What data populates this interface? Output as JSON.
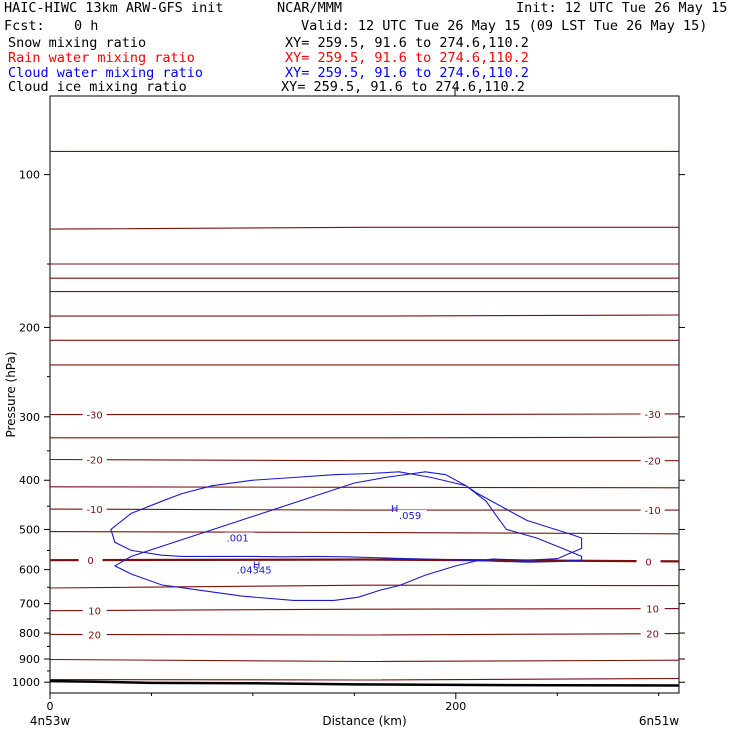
{
  "header": {
    "model": "HAIC-HIWC 13km ARW-GFS init",
    "org": "NCAR/MMM",
    "init": "Init: 12 UTC Tue 26 May 15",
    "fcst_label": "Fcst:",
    "fcst_value": "0 h",
    "valid": "Valid: 12 UTC Tue 26 May 15 (09 LST Tue 26 May 15)"
  },
  "fields": [
    {
      "name": "Snow mixing ratio",
      "xy": "XY= 259.5, 91.6 to 274.6,110.2",
      "color": "#000000"
    },
    {
      "name": "Rain water mixing ratio",
      "xy": "XY= 259.5, 91.6 to 274.6,110.2",
      "color": "#ff0000"
    },
    {
      "name": "Cloud water mixing ratio",
      "xy": "XY= 259.5, 91.6 to 274.6,110.2",
      "color": "#0000ff"
    },
    {
      "name": "Cloud ice mixing ratio",
      "xy": "XY= 259.5, 91.6 to 274.6,110.2",
      "color": "#000000"
    }
  ],
  "colors": {
    "isotherm": "#7a1010",
    "cloud_water": "#1a1acc",
    "terrain": "#000000"
  },
  "chart_data": {
    "type": "line",
    "xlabel": "Distance (km)",
    "ylabel": "Pressure (hPa)",
    "xlim": [
      0,
      310
    ],
    "ylim": [
      1050,
      70
    ],
    "y_scale": "log",
    "x_ticks": [
      0,
      200
    ],
    "y_ticks": [
      100,
      200,
      300,
      400,
      500,
      600,
      700,
      800,
      900,
      1000
    ],
    "start_label": "4n53w",
    "end_label": "6n51w",
    "isotherms": [
      {
        "pressure": [
          90,
          90,
          90
        ]
      },
      {
        "pressure": [
          128,
          127,
          127
        ]
      },
      {
        "pressure": [
          150,
          150,
          150
        ]
      },
      {
        "pressure": [
          160,
          160,
          160
        ]
      },
      {
        "pressure": [
          170,
          170,
          170
        ]
      },
      {
        "pressure": [
          190,
          190,
          189
        ]
      },
      {
        "pressure": [
          212,
          212,
          212
        ]
      },
      {
        "pressure": [
          237,
          237,
          237
        ]
      },
      {
        "label": "-30",
        "pressure": [
          297,
          297,
          296
        ]
      },
      {
        "pressure": [
          330,
          330,
          329
        ]
      },
      {
        "label": "-20",
        "pressure": [
          364,
          366,
          366
        ]
      },
      {
        "pressure": [
          412,
          413,
          414
        ]
      },
      {
        "label": "-10",
        "pressure": [
          456,
          458,
          458
        ]
      },
      {
        "pressure": [
          505,
          507,
          510
        ]
      },
      {
        "label": "0",
        "bold": true,
        "pressure": [
          575,
          573,
          578
        ]
      },
      {
        "pressure": [
          652,
          644,
          645
        ]
      },
      {
        "label": "10",
        "pressure": [
          723,
          718,
          716
        ]
      },
      {
        "label": "20",
        "pressure": [
          805,
          807,
          802
        ]
      },
      {
        "pressure": [
          902,
          910,
          905
        ]
      },
      {
        "pressure": [
          988,
          990,
          983
        ]
      }
    ],
    "isotherm_x": [
      0,
      155,
      310
    ],
    "cloud_water": {
      "x": [
        40,
        32,
        40,
        55,
        75,
        95,
        120,
        140,
        152,
        163,
        172,
        185,
        200,
        210,
        218,
        226,
        235,
        250,
        262,
        262,
        258,
        235,
        210,
        205,
        188,
        172,
        158,
        140,
        120,
        100,
        80,
        65,
        55,
        40,
        30,
        32,
        40,
        55,
        65,
        82,
        100,
        115,
        130,
        146,
        158,
        170,
        185,
        205,
        222,
        236,
        252,
        262,
        262,
        255,
        240,
        225,
        220,
        215,
        205,
        195,
        185,
        165,
        150
      ],
      "y": [
        565,
        590,
        612,
        643,
        660,
        677,
        690,
        690,
        680,
        658,
        645,
        615,
        590,
        577,
        572,
        573,
        575,
        571,
        545,
        520,
        513,
        480,
        423,
        410,
        395,
        385,
        388,
        390,
        395,
        400,
        410,
        425,
        440,
        465,
        500,
        530,
        550,
        562,
        565,
        565,
        565,
        566,
        565,
        566,
        568,
        570,
        572,
        575,
        578,
        580,
        578,
        575,
        565,
        550,
        520,
        500,
        470,
        440,
        410,
        390,
        385,
        395,
        405
      ],
      "labels": [
        {
          "text": ".001",
          "x": 87,
          "y": 528
        },
        {
          "text": ".059",
          "x": 172,
          "y": 477
        },
        {
          "text": ".04345",
          "x": 92,
          "y": 610
        }
      ],
      "highs": [
        {
          "text": "H",
          "x": 168,
          "y": 462
        },
        {
          "text": "H",
          "x": 100,
          "y": 597
        }
      ]
    },
    "terrain": {
      "x": [
        0,
        20,
        50,
        100,
        135,
        150,
        200,
        250,
        310
      ],
      "y": [
        995,
        997,
        1003,
        1005,
        1008,
        1010,
        1012,
        1014,
        1015
      ]
    }
  }
}
